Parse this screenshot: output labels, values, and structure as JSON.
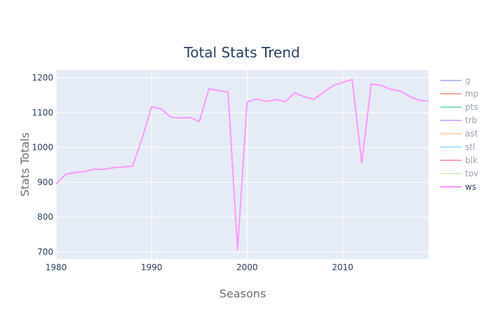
{
  "chart_data": {
    "type": "line",
    "title": "Total Stats Trend",
    "xlabel": "Seasons",
    "ylabel": "Stats Totals",
    "xlim": [
      1980,
      2019
    ],
    "ylim": [
      680,
      1222
    ],
    "x_ticks": [
      1980,
      1990,
      2000,
      2010
    ],
    "y_ticks": [
      700,
      800,
      900,
      1000,
      1100,
      1200
    ],
    "grid": true,
    "legend_position": "right",
    "series": [
      {
        "name": "g",
        "color": "#b9bff0",
        "visible": false,
        "x": [],
        "values": []
      },
      {
        "name": "mp",
        "color": "#f4a99c",
        "visible": false,
        "x": [],
        "values": []
      },
      {
        "name": "pts",
        "color": "#7fe1c3",
        "visible": false,
        "x": [],
        "values": []
      },
      {
        "name": "trb",
        "color": "#d6b3ff",
        "visible": false,
        "x": [],
        "values": []
      },
      {
        "name": "ast",
        "color": "#ffd3b0",
        "visible": false,
        "x": [],
        "values": []
      },
      {
        "name": "stl",
        "color": "#a8e8fb",
        "visible": false,
        "x": [],
        "values": []
      },
      {
        "name": "blk",
        "color": "#ff9ec4",
        "visible": false,
        "x": [],
        "values": []
      },
      {
        "name": "tov",
        "color": "#d9f0c4",
        "visible": false,
        "x": [],
        "values": []
      },
      {
        "name": "ws",
        "color": "#ff97ff",
        "visible": true,
        "x": [
          1980,
          1981,
          1982,
          1983,
          1984,
          1985,
          1986,
          1987,
          1988,
          1989,
          1990,
          1991,
          1992,
          1993,
          1994,
          1995,
          1996,
          1997,
          1998,
          1999,
          2000,
          2001,
          2002,
          2003,
          2004,
          2005,
          2006,
          2007,
          2008,
          2009,
          2010,
          2011,
          2012,
          2013,
          2014,
          2015,
          2016,
          2017,
          2018,
          2019
        ],
        "values": [
          895,
          923,
          928,
          931,
          938,
          937,
          942,
          944,
          946,
          1025,
          1117,
          1110,
          1087,
          1084,
          1086,
          1074,
          1168,
          1163,
          1159,
          706,
          1130,
          1139,
          1132,
          1137,
          1131,
          1157,
          1145,
          1138,
          1158,
          1177,
          1186,
          1195,
          955,
          1182,
          1178,
          1167,
          1162,
          1147,
          1135,
          1133
        ]
      }
    ]
  }
}
